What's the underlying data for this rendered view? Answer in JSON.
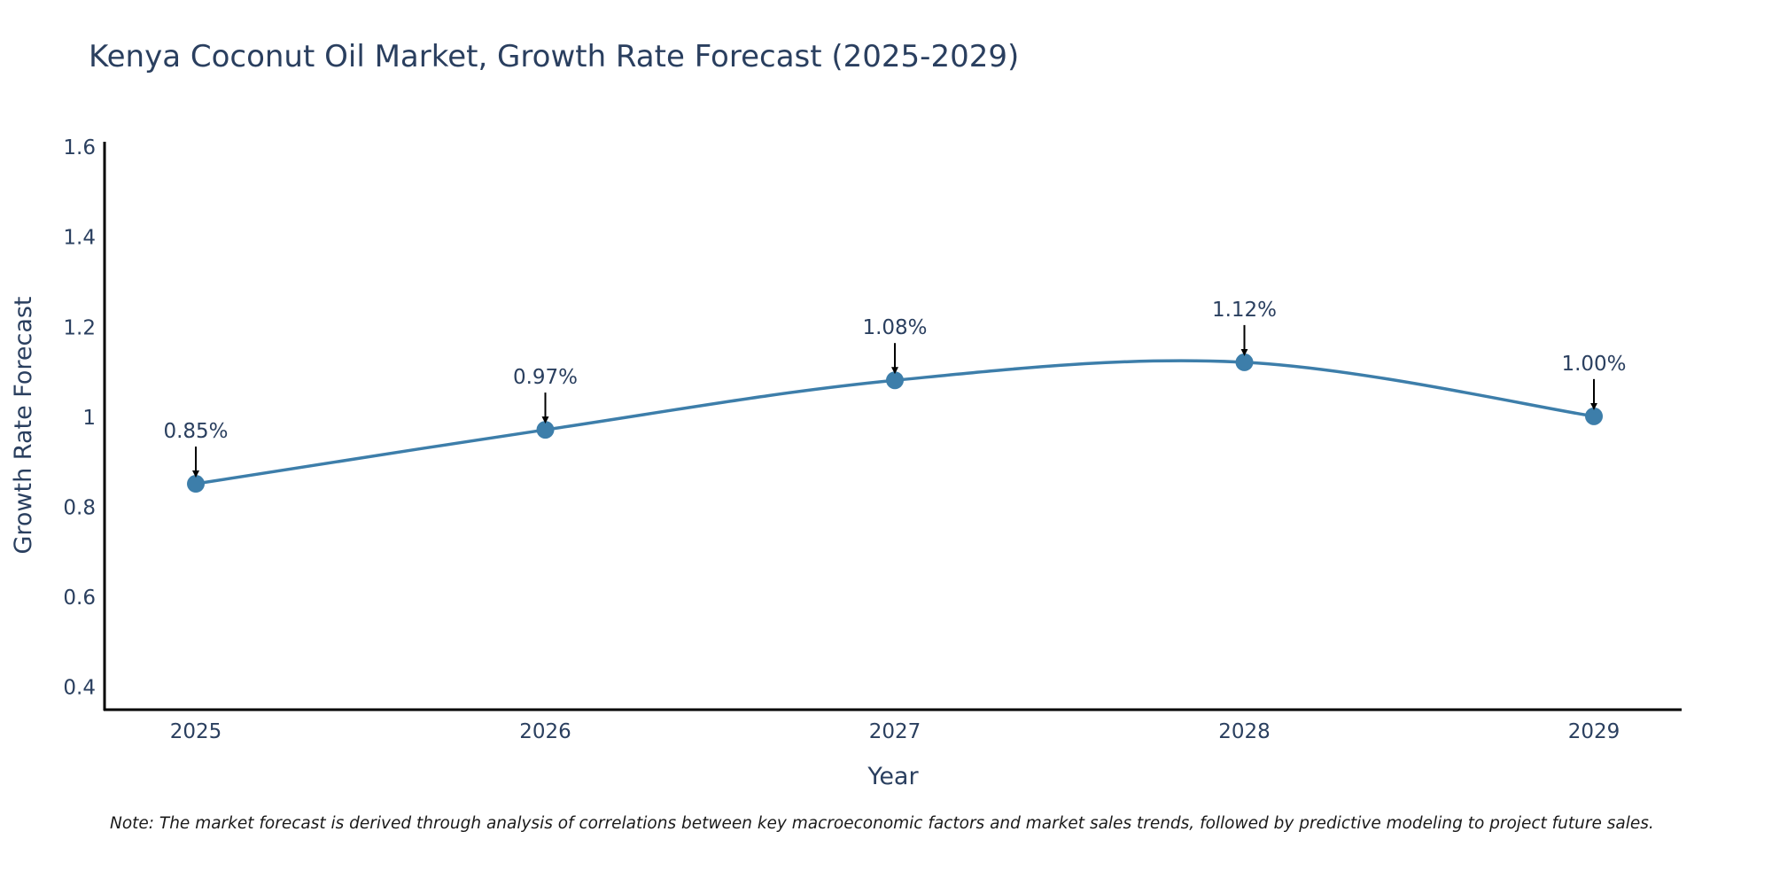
{
  "chart_data": {
    "type": "line",
    "title": "Kenya Coconut Oil Market, Growth Rate Forecast (2025-2029)",
    "xlabel": "Year",
    "ylabel": "Growth Rate Forecast",
    "categories": [
      "2025",
      "2026",
      "2027",
      "2028",
      "2029"
    ],
    "values": [
      0.85,
      0.97,
      1.08,
      1.12,
      1.0
    ],
    "data_labels": [
      "0.85%",
      "0.97%",
      "1.08%",
      "1.12%",
      "1.00%"
    ],
    "ylim": [
      0.35,
      1.61
    ],
    "yticks": [
      0.4,
      0.6,
      0.8,
      1,
      1.2,
      1.4,
      1.6
    ],
    "ytick_labels": [
      "0.4",
      "0.6",
      "0.8",
      "1",
      "1.2",
      "1.4",
      "1.6"
    ],
    "grid": false,
    "line_color": "#3d7eaa",
    "marker_color": "#3d7eaa",
    "arrow_color": "#000000",
    "note": "Note: The market forecast is derived through analysis of correlations between key macroeconomic factors and market sales trends, followed by predictive modeling to project future sales."
  }
}
